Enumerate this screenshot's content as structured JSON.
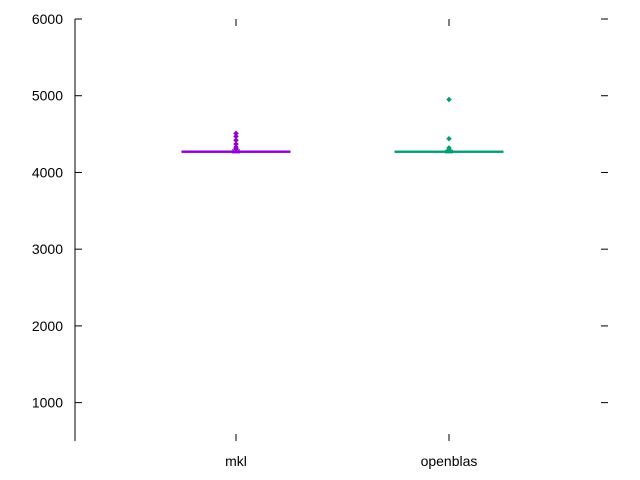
{
  "chart_data": {
    "type": "box",
    "title": "",
    "xlabel": "",
    "ylabel": "",
    "ylim": [
      500,
      6000
    ],
    "yticks": [
      1000,
      2000,
      3000,
      4000,
      5000,
      6000
    ],
    "ytick_labels": [
      "1000",
      "2000",
      "3000",
      "4000",
      "5000",
      "6000"
    ],
    "grid": false,
    "legend": "none",
    "categories": [
      "mkl",
      "openblas"
    ],
    "series": [
      {
        "color": "#9400d3",
        "median": 4270,
        "q1": 4262,
        "q3": 4280,
        "whisker_low": 4255,
        "whisker_high": 4295,
        "outliers": [
          4310,
          4330,
          4370,
          4420,
          4470,
          4510
        ]
      },
      {
        "color": "#009e73",
        "median": 4270,
        "q1": 4262,
        "q3": 4278,
        "whisker_low": 4255,
        "whisker_high": 4290,
        "outliers": [
          4300,
          4320,
          4440,
          4950
        ]
      }
    ]
  }
}
